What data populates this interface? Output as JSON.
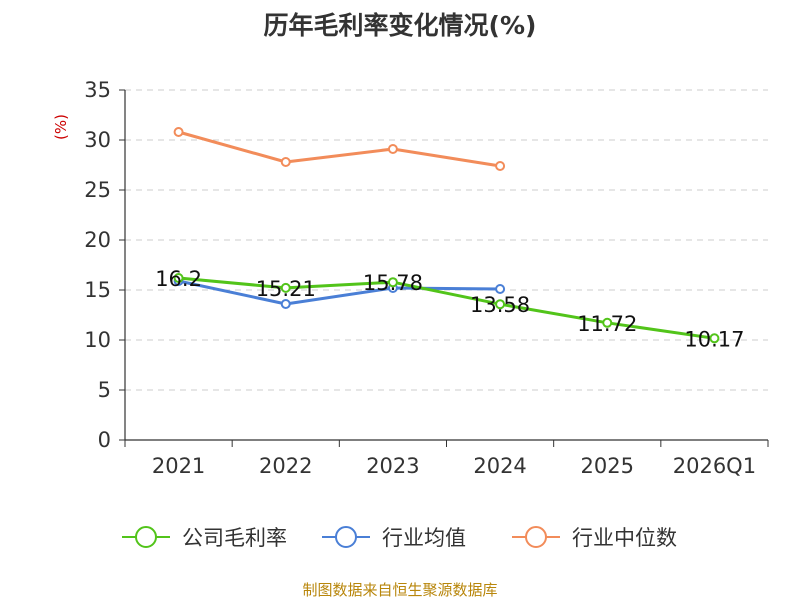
{
  "chart_data": {
    "type": "line",
    "title": "历年毛利率变化情况(%)",
    "ylabel": "(%)",
    "xlabel": "",
    "categories": [
      "2021",
      "2022",
      "2023",
      "2024",
      "2025",
      "2026Q1"
    ],
    "ylim": [
      0,
      35
    ],
    "yticks": [
      0,
      5,
      10,
      15,
      20,
      25,
      30,
      35
    ],
    "grid": true,
    "legend_position": "bottom",
    "series": [
      {
        "name": "公司毛利率",
        "color": "#52c41a",
        "values": [
          16.2,
          15.21,
          15.78,
          13.58,
          11.72,
          10.17
        ],
        "labels": [
          "16.2",
          "15.21",
          "15.78",
          "13.58",
          "11.72",
          "10.17"
        ]
      },
      {
        "name": "行业均值",
        "color": "#4a7fd6",
        "values": [
          15.9,
          13.6,
          15.2,
          15.1,
          null,
          null
        ]
      },
      {
        "name": "行业中位数",
        "color": "#f28c5a",
        "values": [
          30.8,
          27.8,
          29.1,
          27.4,
          null,
          null
        ]
      }
    ]
  },
  "source": "制图数据来自恒生聚源数据库"
}
